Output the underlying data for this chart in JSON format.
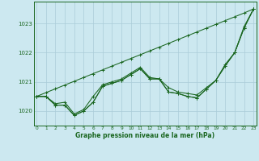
{
  "bg_color": "#cce8f0",
  "grid_color": "#aaccd8",
  "line_color": "#1a6620",
  "series": [
    [
      1020.5,
      1020.5,
      1020.2,
      1020.2,
      1019.85,
      1020.0,
      1020.3,
      1020.85,
      1020.95,
      1021.05,
      1021.25,
      1021.45,
      1021.1,
      1021.1,
      1020.65,
      1020.6,
      1020.5,
      1020.45,
      1020.75,
      1021.05,
      1021.55,
      1022.0,
      1022.85,
      1023.5
    ],
    [
      1020.5,
      1020.5,
      1020.25,
      1020.3,
      1019.9,
      1020.05,
      1020.5,
      1020.9,
      1021.0,
      1021.1,
      1021.3,
      1021.5,
      1021.15,
      1021.1,
      1020.8,
      1020.65,
      1020.6,
      1020.55,
      1020.8,
      1021.05,
      1021.6,
      1022.0,
      1022.9,
      1023.5
    ],
    [
      1020.5,
      1020.5,
      1020.2,
      1020.2,
      1019.85,
      1020.0,
      1020.3,
      1020.85,
      1020.95,
      1021.05,
      1021.25,
      1021.45,
      1021.1,
      1021.1,
      1020.65,
      1020.6,
      1020.5,
      1020.45,
      1020.75,
      1021.05,
      1021.55,
      1022.0,
      1022.85,
      1023.5
    ],
    [
      1020.5,
      1020.63,
      1020.76,
      1020.89,
      1021.02,
      1021.15,
      1021.28,
      1021.41,
      1021.54,
      1021.67,
      1021.8,
      1021.93,
      1022.06,
      1022.19,
      1022.32,
      1022.45,
      1022.58,
      1022.71,
      1022.84,
      1022.97,
      1023.1,
      1023.23,
      1023.36,
      1023.5
    ]
  ],
  "ylim": [
    1019.5,
    1023.75
  ],
  "yticks": [
    1020,
    1021,
    1022,
    1023
  ],
  "xticks": [
    0,
    1,
    2,
    3,
    4,
    5,
    6,
    7,
    8,
    9,
    10,
    11,
    12,
    13,
    14,
    15,
    16,
    17,
    18,
    19,
    20,
    21,
    22,
    23
  ],
  "xlabel": "Graphe pression niveau de la mer (hPa)"
}
